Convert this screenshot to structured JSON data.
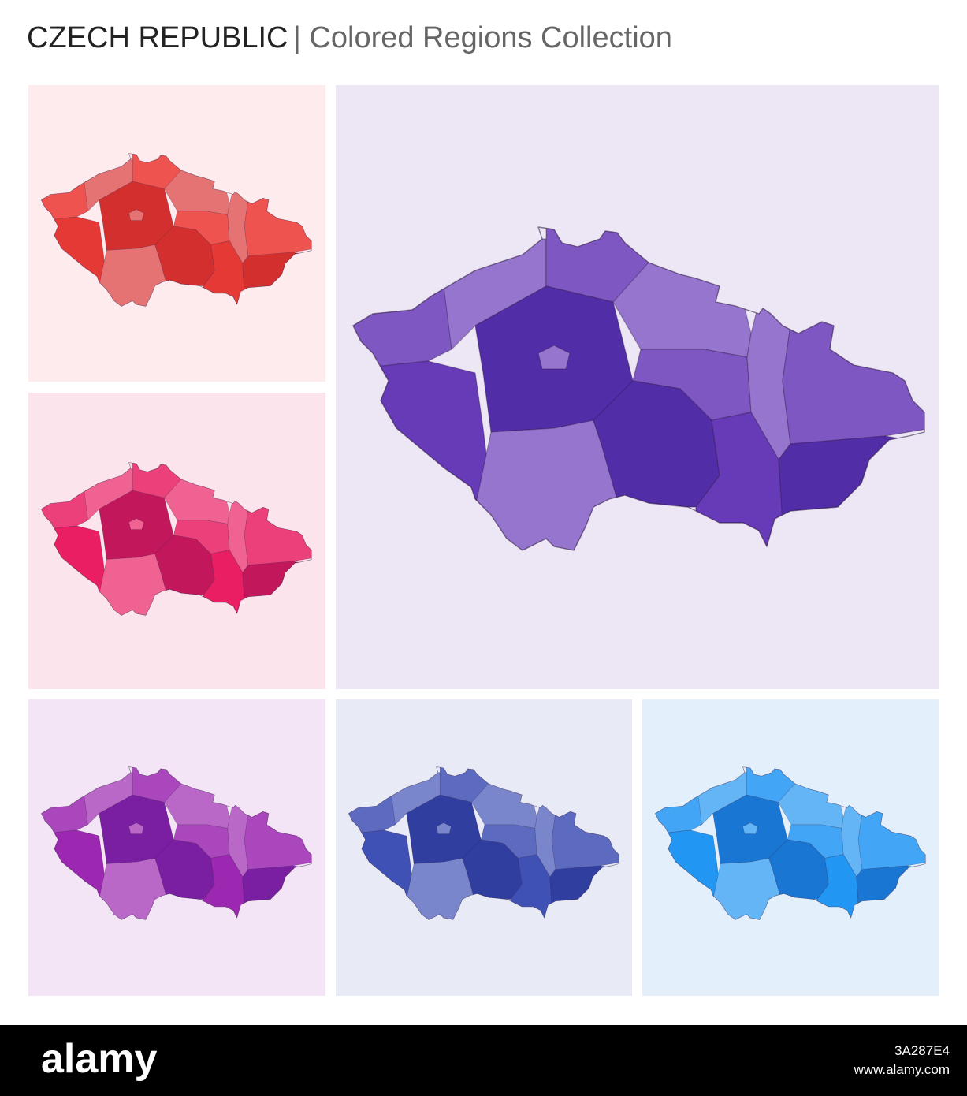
{
  "header": {
    "title": "CZECH REPUBLIC",
    "subtitle": "| Colored Regions Collection"
  },
  "footer": {
    "brand": "alamy",
    "image_id": "3A287E4",
    "url": "www.alamy.com"
  }
}
